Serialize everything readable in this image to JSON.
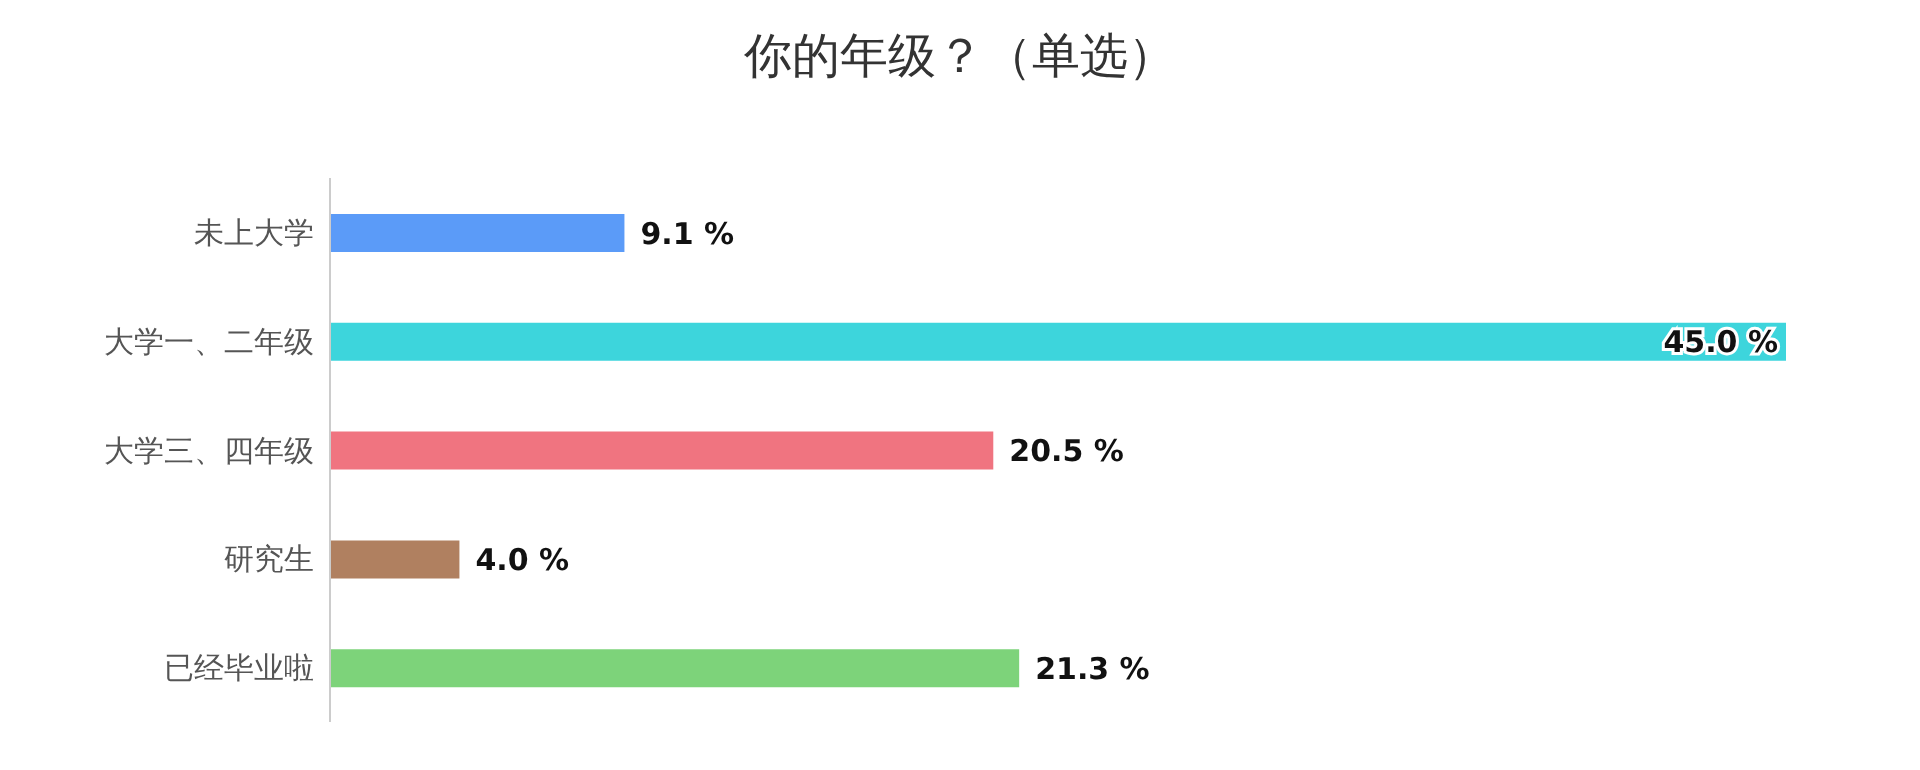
{
  "chart_data": {
    "type": "bar",
    "orientation": "horizontal",
    "title": "你的年级？（单选）",
    "categories": [
      "未上大学",
      "大学一、二年级",
      "大学三、四年级",
      "研究生",
      "已经毕业啦"
    ],
    "values": [
      9.1,
      45.0,
      20.5,
      4.0,
      21.3
    ],
    "colors": [
      "#5b9bf8",
      "#3dd5dc",
      "#f07480",
      "#b08060",
      "#7dd37a"
    ],
    "value_labels": [
      "9.1 %",
      "45.0 %",
      "20.5 %",
      "4.0 %",
      "21.3 %"
    ],
    "grid": false,
    "legend": false
  }
}
